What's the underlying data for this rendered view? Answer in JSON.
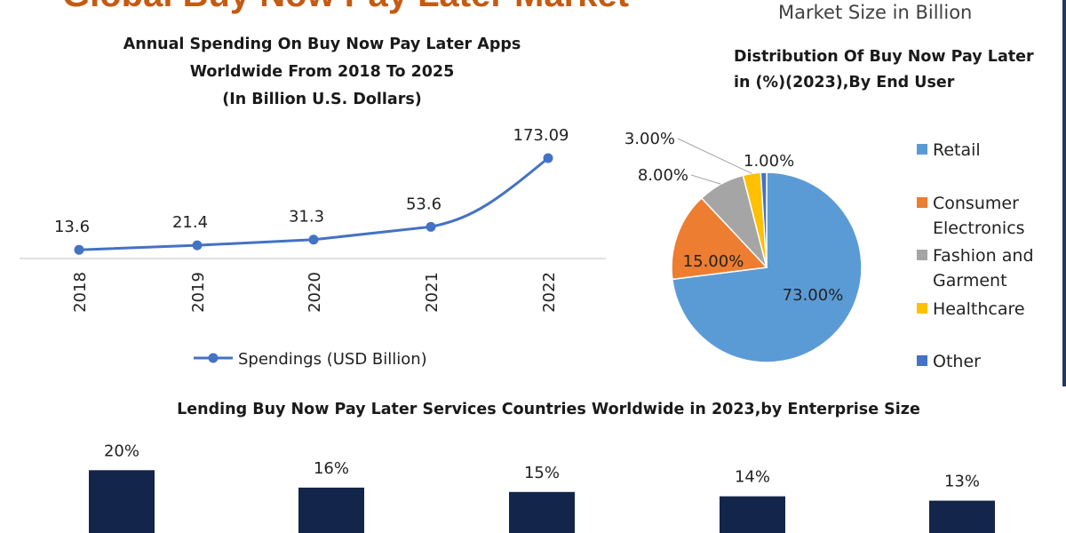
{
  "header": {
    "title": "Global Buy Now Pay Later Market",
    "subtitle": "Market Size in Billion"
  },
  "chart_data": [
    {
      "type": "line",
      "title_lines": [
        "Annual Spending On Buy Now Pay Later Apps",
        "Worldwide  From 2018 To 2025",
        "(In Billion  U.S. Dollars)"
      ],
      "categories": [
        "2018",
        "2019",
        "2020",
        "2021",
        "2022"
      ],
      "series": [
        {
          "name": "Spendings (USD Billion)",
          "values": [
            13.6,
            21.4,
            31.3,
            53.6,
            173.09
          ],
          "labels": [
            "13.6",
            "21.4",
            "31.3",
            "53.6",
            "173.09"
          ]
        }
      ],
      "ylim": [
        0,
        200
      ],
      "color": "#4472c4",
      "legend": "bottom"
    },
    {
      "type": "pie",
      "title_lines": [
        "Distribution Of Buy Now Pay Later",
        "in (%)(2023),By End User"
      ],
      "slices": [
        {
          "name": "Retail",
          "legend_lines": [
            "Retail"
          ],
          "value": 73,
          "label": "73.00%",
          "color": "#5b9bd5"
        },
        {
          "name": "Consumer Electronics",
          "legend_lines": [
            "Consumer",
            "Electronics"
          ],
          "value": 15,
          "label": "15.00%",
          "color": "#ed7d31"
        },
        {
          "name": "Fashion and Garment",
          "legend_lines": [
            "Fashion and",
            "Garment"
          ],
          "value": 8,
          "label": "8.00%",
          "color": "#a5a5a5"
        },
        {
          "name": "Healthcare",
          "legend_lines": [
            "Healthcare"
          ],
          "value": 3,
          "label": "3.00%",
          "color": "#ffc000"
        },
        {
          "name": "Other",
          "legend_lines": [
            "Other"
          ],
          "value": 1,
          "label": "1.00%",
          "color": "#4472c4"
        }
      ],
      "legend": "right"
    },
    {
      "type": "bar",
      "title": "Lending Buy Now Pay Later Services Countries Worldwide in 2023,by Enterprise Size",
      "values": [
        20,
        16,
        15,
        14,
        13
      ],
      "labels": [
        "20%",
        "16%",
        "15%",
        "14%",
        "13%"
      ],
      "color": "#13254a"
    }
  ]
}
